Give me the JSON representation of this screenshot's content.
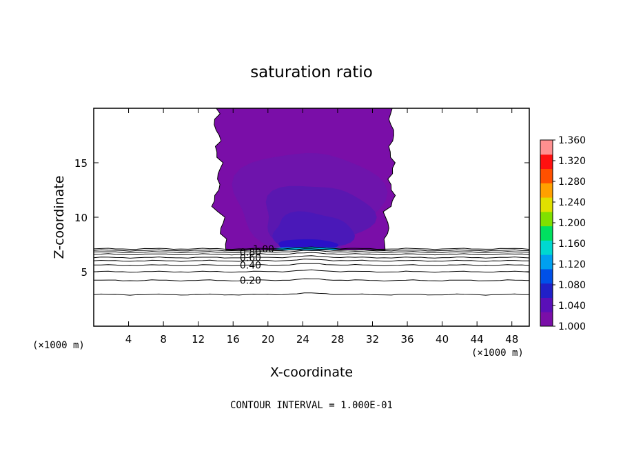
{
  "chart_data": {
    "type": "contour",
    "title": "saturation ratio",
    "xlabel": "X-coordinate",
    "ylabel": "Z-coordinate",
    "x_unit_left": "(×1000 m)",
    "x_unit_right": "(×1000 m)",
    "footer": "CONTOUR INTERVAL = 1.000E-01",
    "xlim": [
      0,
      50
    ],
    "ylim": [
      0,
      20
    ],
    "x_ticks": [
      4,
      8,
      12,
      16,
      20,
      24,
      28,
      32,
      36,
      40,
      44,
      48
    ],
    "y_ticks": [
      5,
      10,
      15
    ],
    "colorbar": {
      "min": 1.0,
      "max": 1.36,
      "ticks": [
        "1.360",
        "1.320",
        "1.280",
        "1.240",
        "1.200",
        "1.160",
        "1.120",
        "1.080",
        "1.040",
        "1.000"
      ],
      "colors": [
        "#7a0ea8",
        "#5a0fb8",
        "#2020c8",
        "#0050e8",
        "#00a0f0",
        "#00d8d0",
        "#00e060",
        "#80e000",
        "#e0e000",
        "#ffa000",
        "#ff5000",
        "#ff1010",
        "#ff9090"
      ]
    },
    "supersaturated_region": {
      "x_range": [
        13.5,
        34.5
      ],
      "z_range": [
        7.0,
        20.0
      ],
      "fill_levels": [
        {
          "level": 1.0,
          "color": "#7a0ea8"
        },
        {
          "level": 1.01,
          "color": "#6e14ac"
        },
        {
          "level": 1.02,
          "color": "#5a17b0"
        },
        {
          "level": 1.03,
          "color": "#4a18b8"
        },
        {
          "level": 1.05,
          "color": "#2a10c8"
        },
        {
          "level": 1.1,
          "color": "#00c0f0"
        }
      ]
    },
    "contour_lines": [
      {
        "level": 0.2,
        "label": "0.20",
        "z": 4.2
      },
      {
        "level": 0.1,
        "label": "",
        "z": 2.9
      },
      {
        "level": 0.3,
        "label": "",
        "z": 5.0
      },
      {
        "level": 0.4,
        "label": "0.40",
        "z": 5.6
      },
      {
        "level": 0.5,
        "label": "",
        "z": 6.0
      },
      {
        "level": 0.6,
        "label": "0.60",
        "z": 6.3
      },
      {
        "level": 0.7,
        "label": "",
        "z": 6.6
      },
      {
        "level": 0.8,
        "label": "0.80",
        "z": 6.8
      },
      {
        "level": 0.9,
        "label": "",
        "z": 6.95
      },
      {
        "level": 1.0,
        "label": "1.00",
        "z": 7.1
      }
    ]
  }
}
